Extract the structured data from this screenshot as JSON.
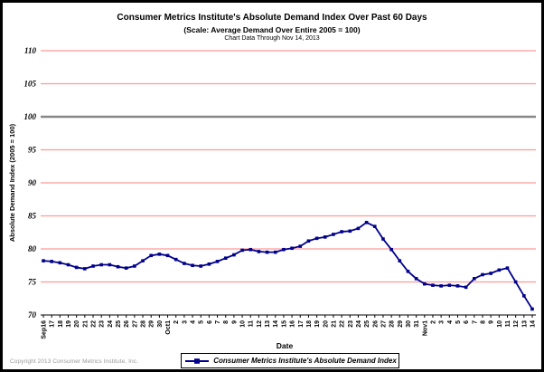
{
  "header": {
    "title": "Consumer Metrics Institute's Absolute Demand Index Over Past 60 Days",
    "subtitle": "(Scale: Average Demand Over Entire 2005 = 100)",
    "note": "Chart Data Through Nov 14, 2013"
  },
  "legend": {
    "label": "Consumer Metrics Institute's Absolute Demand Index"
  },
  "footer": {
    "copyright": "Copyright 2013 Consumer Metrics Institute, Inc."
  },
  "colors": {
    "series": "#00008B",
    "gridline": "#FF9999",
    "reference_line": "#888888",
    "axis": "#000000",
    "copyright_text": "#9A9A9A"
  },
  "chart_data": {
    "type": "line",
    "title": "Consumer Metrics Institute's Absolute Demand Index Over Past 60 Days",
    "subtitle": "(Scale: Average Demand Over Entire 2005 = 100)",
    "note": "Chart Data Through Nov 14, 2013",
    "xlabel": "Date",
    "ylabel": "Absolute Demand Index (2005 = 100)",
    "ylim": [
      70,
      110
    ],
    "yticks": [
      70,
      75,
      80,
      85,
      90,
      95,
      100,
      105,
      110
    ],
    "gridline_color": "#FF9999",
    "reference_line": {
      "value": 100,
      "color": "#888888"
    },
    "grid": true,
    "legend_position": "bottom",
    "categories": [
      "Sep16",
      "17",
      "18",
      "19",
      "20",
      "21",
      "22",
      "23",
      "24",
      "25",
      "26",
      "27",
      "28",
      "29",
      "30",
      "Oct1",
      "2",
      "3",
      "4",
      "5",
      "6",
      "7",
      "8",
      "9",
      "10",
      "11",
      "12",
      "13",
      "14",
      "15",
      "16",
      "17",
      "18",
      "19",
      "20",
      "21",
      "22",
      "23",
      "24",
      "25",
      "26",
      "27",
      "28",
      "29",
      "30",
      "31",
      "Nov1",
      "2",
      "3",
      "4",
      "5",
      "6",
      "7",
      "8",
      "9",
      "10",
      "11",
      "12",
      "13",
      "14"
    ],
    "series": [
      {
        "name": "Consumer Metrics Institute's Absolute Demand Index",
        "color": "#00008B",
        "marker": "square",
        "values": [
          78.2,
          78.1,
          77.9,
          77.6,
          77.2,
          77.0,
          77.4,
          77.6,
          77.6,
          77.3,
          77.1,
          77.4,
          78.2,
          79.0,
          79.2,
          79.0,
          78.4,
          77.8,
          77.5,
          77.4,
          77.7,
          78.1,
          78.6,
          79.1,
          79.8,
          79.9,
          79.6,
          79.5,
          79.5,
          79.9,
          80.1,
          80.4,
          81.2,
          81.6,
          81.8,
          82.2,
          82.6,
          82.7,
          83.1,
          84.0,
          83.4,
          81.5,
          79.9,
          78.2,
          76.6,
          75.5,
          74.7,
          74.5,
          74.4,
          74.5,
          74.4,
          74.2,
          75.5,
          76.1,
          76.3,
          76.8,
          77.1,
          75.0,
          72.9,
          70.9
        ]
      }
    ]
  }
}
